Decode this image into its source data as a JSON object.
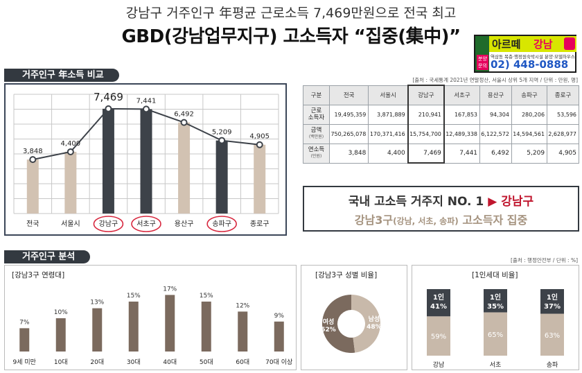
{
  "header": {
    "subtitle": "강남구 거주인구 年평균 근로소득 7,469만원으로 전국 최고",
    "title": "GBD(강남업무지구) 고소득자 “집중(集中)”"
  },
  "ad": {
    "name_a": "아르떼",
    "name_b": "강남",
    "badge": "분양 문의",
    "sub": "역삼동 복층·행정원숙박시설 분양·모델하우스",
    "phone": "02) 448-0888"
  },
  "income_section": {
    "title": "거주인구 年소득 비교",
    "source": "[출처 : 국세통계 2021년 연말정산, 서울시 상위 5개 지역 / 단위 : 만원, 명]"
  },
  "population_section": {
    "title": "거주인구 분석",
    "source": "[출처 : 행정안전부 / 단위 : %]"
  },
  "table": {
    "headers": [
      "구분",
      "전국",
      "서울시",
      "강남구",
      "서초구",
      "용산구",
      "송파구",
      "종로구"
    ],
    "rows": [
      {
        "label": "근로",
        "label2": "소득자",
        "unit": "",
        "values": [
          "19,495,359",
          "3,871,889",
          "210,941",
          "167,853",
          "94,304",
          "280,206",
          "53,596"
        ]
      },
      {
        "label": "금액",
        "label2": "",
        "unit": "(백만원)",
        "values": [
          "750,265,078",
          "170,371,416",
          "15,754,700",
          "12,489,338",
          "6,122,572",
          "14,594,561",
          "2,628,977"
        ]
      },
      {
        "label": "연소득",
        "label2": "",
        "unit": "(만원)",
        "values": [
          "3,848",
          "4,400",
          "7,469",
          "7,441",
          "6,492",
          "5,209",
          "4,905"
        ]
      }
    ]
  },
  "callout": {
    "line1_a": "국내 고소득 거주지 NO. 1",
    "arrow": "▶",
    "line1_b": "강남구",
    "line2_a": "강남3구",
    "line2_b": "(강남, 서초, 송파)",
    "line2_c": " 고소득자 집중"
  },
  "chart_data": [
    {
      "type": "bar",
      "title": "거주인구 年소득 비교",
      "categories": [
        "전국",
        "서울시",
        "강남구",
        "서초구",
        "용산구",
        "송파구",
        "종로구"
      ],
      "values": [
        3848,
        4400,
        7469,
        7441,
        6492,
        5209,
        4905
      ],
      "labels": [
        "3,848",
        "4,400",
        "7,469",
        "7,441",
        "6,492",
        "5,209",
        "4,905"
      ],
      "highlight": [
        "강남구",
        "서초구",
        "송파구"
      ],
      "ylim": [
        0,
        8500
      ],
      "grid": true,
      "overlay_line": true,
      "colors": {
        "bar": "#d2c2b2",
        "bar_dark": "#3d4249",
        "line": "#3d4249",
        "circle": "#d7263d",
        "grid": "#c7c7c7"
      }
    },
    {
      "type": "bar",
      "title": "[강남3구 연령대]",
      "categories": [
        "9세 미만",
        "10대",
        "20대",
        "30대",
        "40대",
        "50대",
        "60대",
        "70대 이상"
      ],
      "values": [
        7,
        10,
        13,
        15,
        17,
        15,
        12,
        9
      ],
      "labels": [
        "7%",
        "10%",
        "13%",
        "15%",
        "17%",
        "15%",
        "12%",
        "9%"
      ],
      "ylim": [
        0,
        20
      ],
      "colors": {
        "bar": "#7b6a5e"
      }
    },
    {
      "type": "pie",
      "title": "[강남3구 성별 비율]",
      "slices": [
        {
          "name": "여성",
          "value": 52,
          "label": "52%",
          "color": "#7b6a5e"
        },
        {
          "name": "남성",
          "value": 48,
          "label": "48%",
          "color": "#c8b9aa"
        }
      ],
      "donut": true
    },
    {
      "type": "bar",
      "title": "[1인세대 비율]",
      "stacked": true,
      "categories": [
        "강남",
        "서초",
        "송파"
      ],
      "series": [
        {
          "name": "1인",
          "values": [
            41,
            35,
            37
          ],
          "labels": [
            "41%",
            "35%",
            "37%"
          ],
          "color": "#3d4249"
        },
        {
          "name": "",
          "values": [
            59,
            65,
            63
          ],
          "labels": [
            "59%",
            "65%",
            "63%"
          ],
          "color": "#c8b9aa"
        }
      ],
      "ylim": [
        0,
        100
      ]
    }
  ]
}
